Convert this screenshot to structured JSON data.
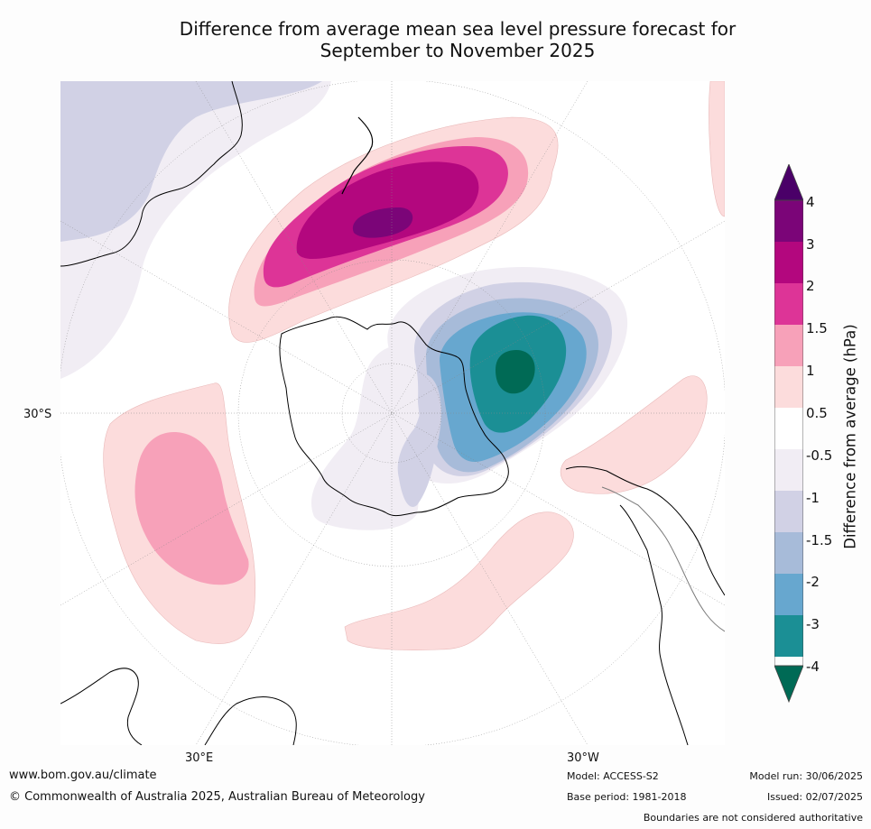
{
  "title": {
    "line1": "Difference from average mean sea level pressure forecast for",
    "line2": "September to November 2025"
  },
  "map": {
    "projection": "south-polar-stereographic",
    "labels": {
      "lat_30s": "30°S",
      "lon_30e": "30°E",
      "lon_30w": "30°W"
    }
  },
  "colorbar": {
    "title": "Difference from average (hPa)",
    "levels": [
      "4",
      "3",
      "2",
      "1.5",
      "1",
      "0.5",
      "-0.5",
      "-1",
      "-1.5",
      "-2",
      "-3",
      "-4"
    ],
    "colors": {
      "gt4": "#4a0068",
      "3to4": "#7b0578",
      "2to3": "#b3077e",
      "1.5to2": "#dd3497",
      "1to1.5": "#f7a1b9",
      "0.5to1": "#fcdcdc",
      "neutral": "#ffffff",
      "m1tom0.5": "#f1edf4",
      "m1.5tom1": "#d1d1e5",
      "m2tom1.5": "#a7bbd9",
      "m3tom2": "#67a7cf",
      "m4tom3": "#1b8f95",
      "lt_m4": "#006a55"
    }
  },
  "footer": {
    "website": "www.bom.gov.au/climate",
    "copyright": "© Commonwealth of Australia 2025, Australian Bureau of Meteorology",
    "model": "Model: ACCESS-S2",
    "base_period": "Base period: 1981-2018",
    "model_run": "Model run: 30/06/2025",
    "issued": "Issued: 02/07/2025",
    "boundaries": "Boundaries are not considered authoritative"
  }
}
